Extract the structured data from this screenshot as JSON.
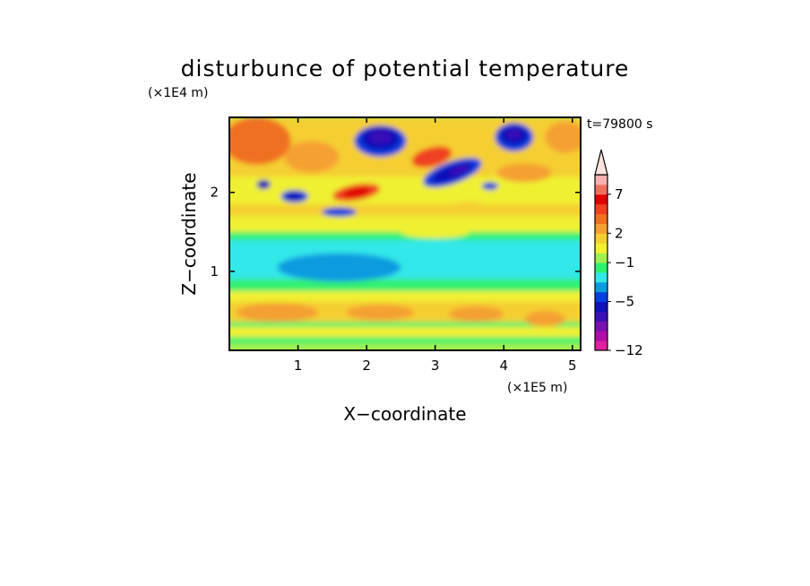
{
  "chart_data": {
    "type": "heatmap",
    "title": "disturbunce of potential temperature",
    "xlabel": "X−coordinate",
    "ylabel": "Z−coordinate",
    "x_unit": "(×1E5 m)",
    "y_unit": "(×1E4 m)",
    "time_label": "t=79800 s",
    "xlim": [
      0,
      5.12
    ],
    "ylim": [
      0,
      2.95
    ],
    "x_ticks": [
      1,
      2,
      3,
      4,
      5
    ],
    "y_ticks": [
      1,
      2
    ],
    "colorbar": {
      "levels": [
        -12,
        -10,
        -8,
        -7,
        -6,
        -5,
        -4,
        -3,
        -2,
        -1,
        0,
        1,
        2,
        3,
        4,
        5,
        7,
        9,
        11
      ],
      "tick_labels": [
        "−12",
        "−5",
        "−1",
        "2",
        "7"
      ],
      "tick_values": [
        -12,
        -5,
        -1,
        2,
        7
      ],
      "colors": [
        "#e0209f",
        "#b00ca8",
        "#7a10b0",
        "#3a10b8",
        "#1010b8",
        "#0040e0",
        "#0a9be0",
        "#30e8e8",
        "#30f070",
        "#a0f050",
        "#f0f030",
        "#f5cf30",
        "#f5a030",
        "#f07020",
        "#f04020",
        "#e00000",
        "#f07060",
        "#f8b0b0"
      ],
      "extend": "max"
    },
    "grid": false
  }
}
